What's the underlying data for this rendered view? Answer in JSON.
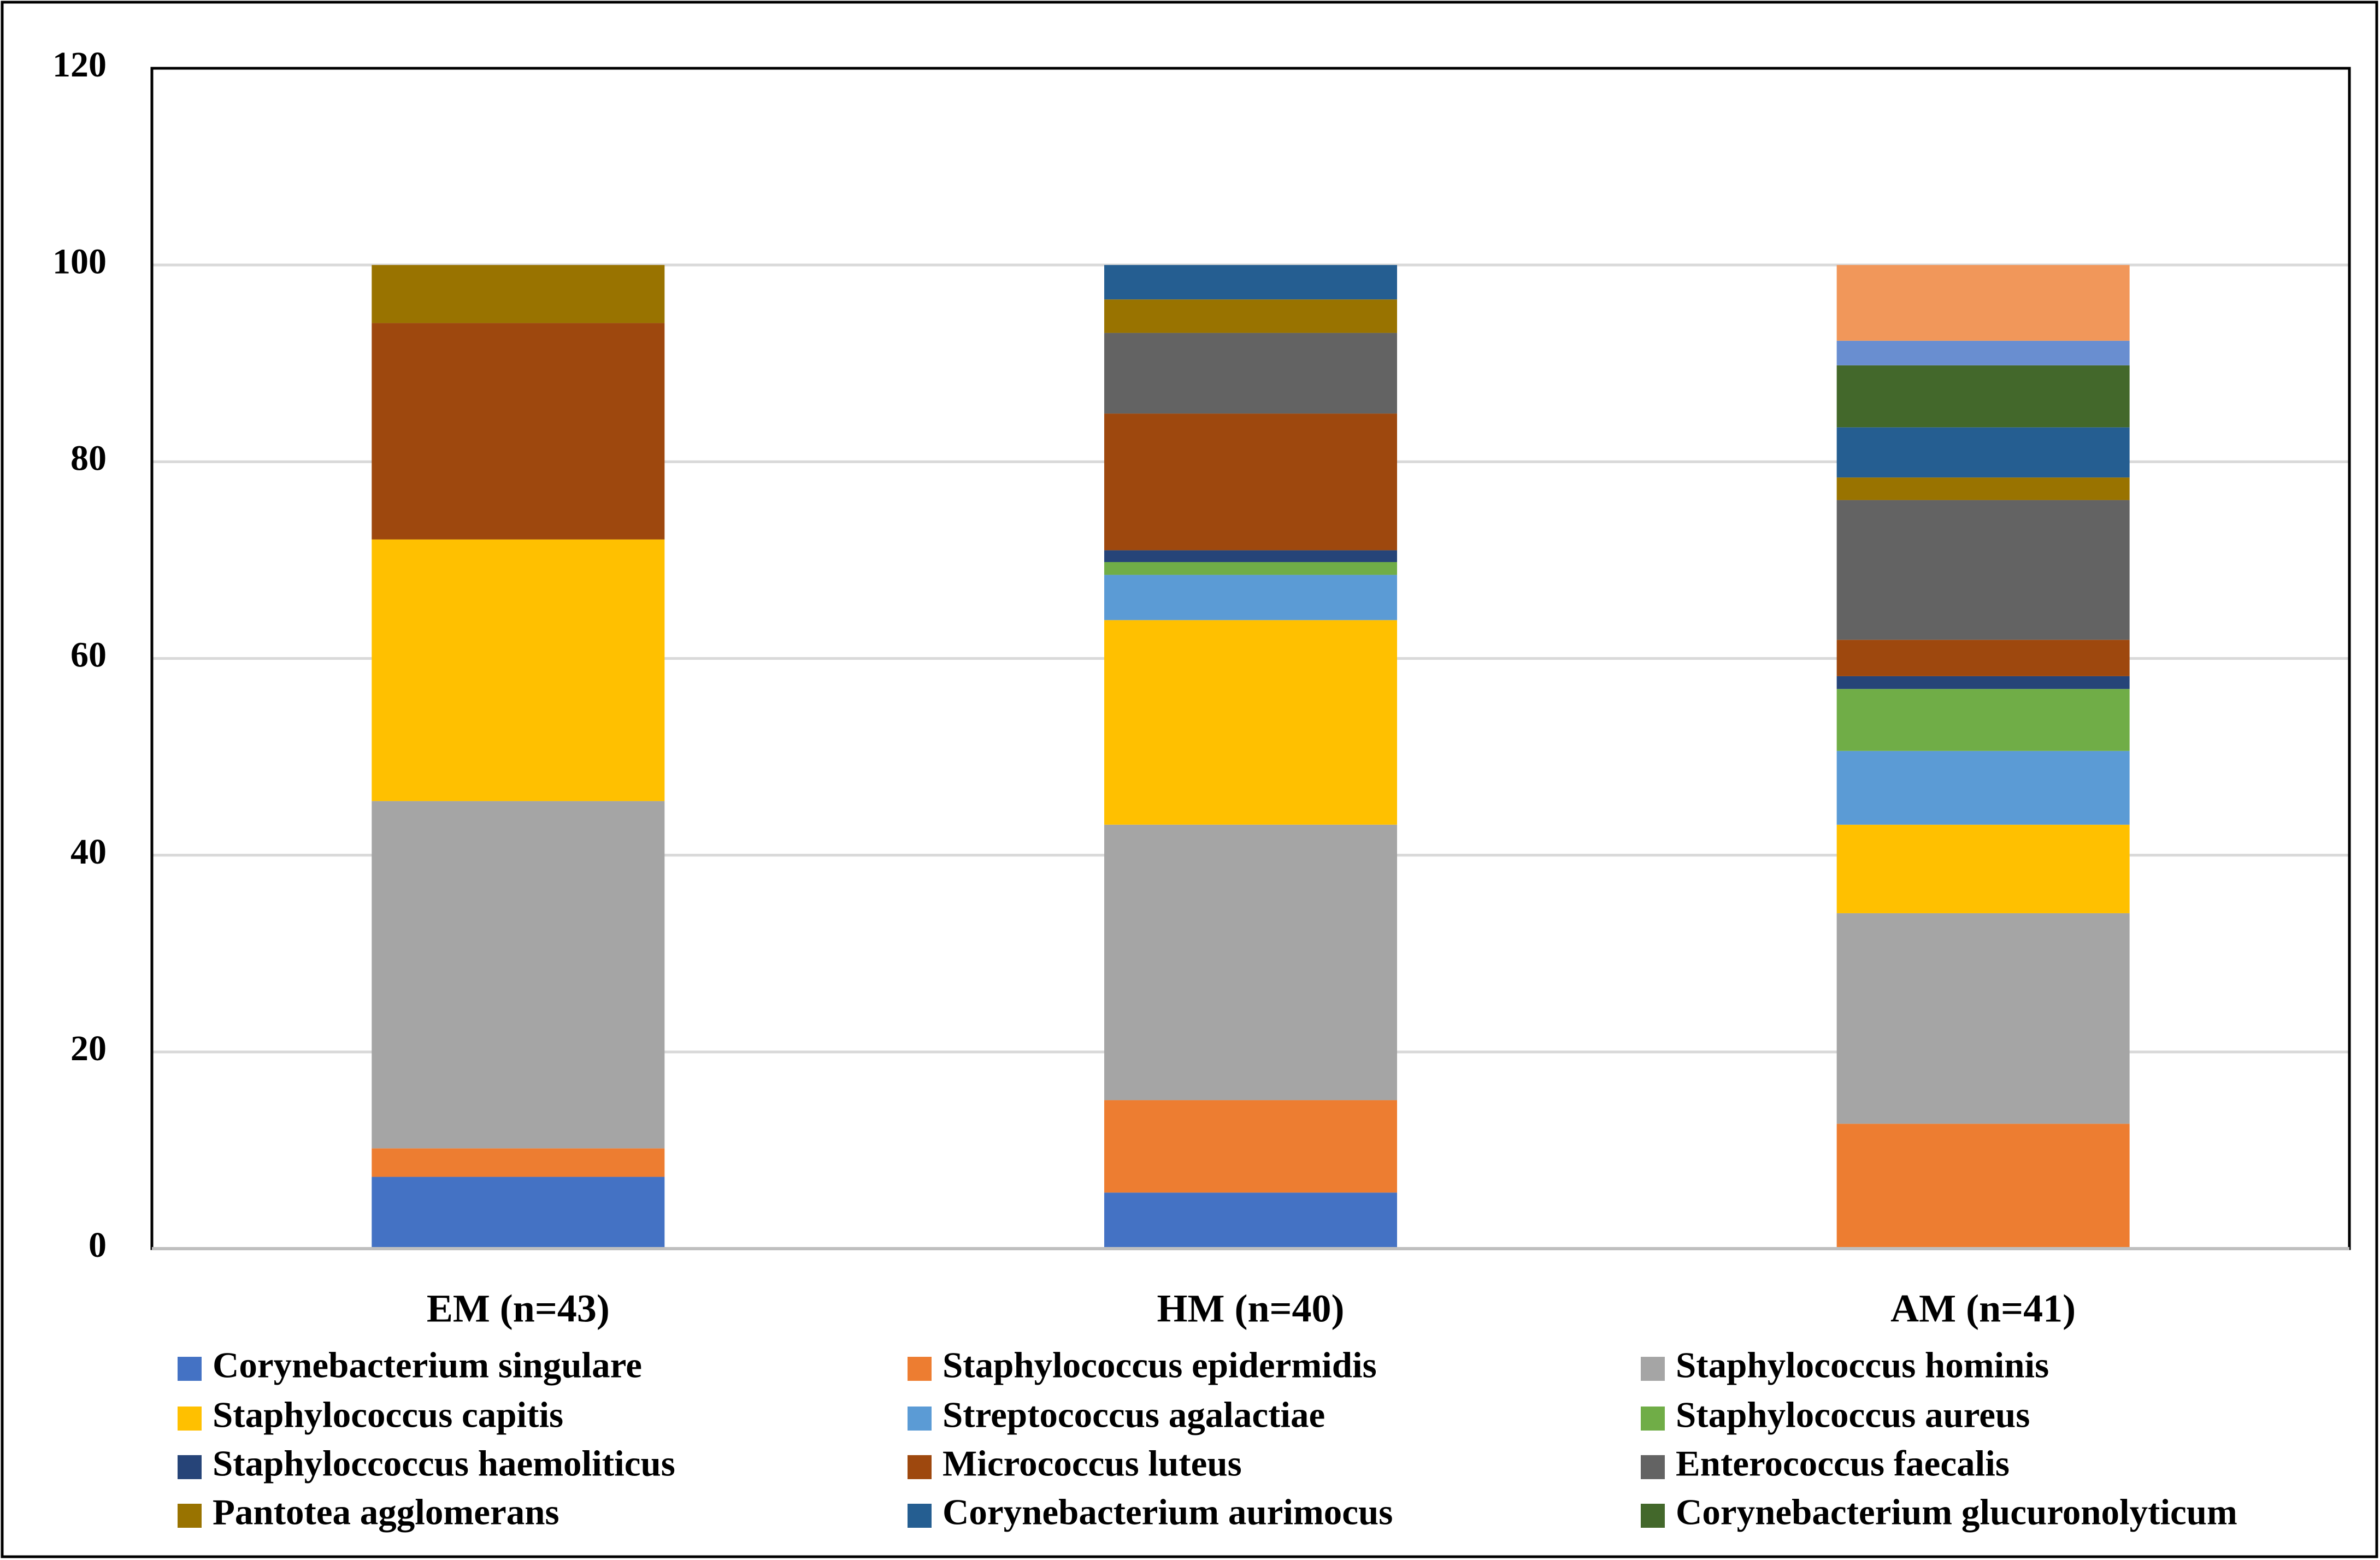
{
  "chart_data": {
    "type": "stacked_bar",
    "categories": [
      "EM (n=43)",
      "HM (n=40)",
      "AM (n=41)"
    ],
    "series": [
      {
        "name": "Corynebacterium singulare",
        "color": "#4472c4",
        "values": [
          7.3,
          5.7,
          null
        ]
      },
      {
        "name": "Staphylococcus epidermidis",
        "color": "#ed7d31",
        "values": [
          2.9,
          9.4,
          12.7
        ]
      },
      {
        "name": "Staphylococcus hominis",
        "color": "#a5a5a5",
        "values": [
          35.3,
          28.0,
          21.4
        ]
      },
      {
        "name": "Staphylococcus capitis",
        "color": "#ffc000",
        "values": [
          26.6,
          20.8,
          9.0
        ]
      },
      {
        "name": "Streptococcus agalactiae",
        "color": "#5b9bd5",
        "values": [
          null,
          4.6,
          7.5
        ]
      },
      {
        "name": "Staphylococcus aureus",
        "color": "#70ad47",
        "values": [
          null,
          1.3,
          6.3
        ]
      },
      {
        "name": "Staphyloccoccus haemoliticus",
        "color": "#264478",
        "values": [
          null,
          1.2,
          1.3
        ]
      },
      {
        "name": "Micrococcus luteus",
        "color": "#9e480e",
        "values": [
          22.0,
          13.9,
          3.7
        ]
      },
      {
        "name": "Enterococcus faecalis",
        "color": "#636363",
        "values": [
          null,
          8.2,
          14.2
        ]
      },
      {
        "name": "Pantotea agglomerans",
        "color": "#997300",
        "values": [
          5.9,
          3.4,
          2.3
        ]
      },
      {
        "name": "Corynebacterium aurimocus",
        "color": "#255e91",
        "values": [
          null,
          3.5,
          5.1
        ]
      },
      {
        "name": "Corynebacterium glucuronolyticum",
        "color": "#43682b",
        "values": [
          null,
          null,
          6.3
        ]
      },
      {
        "color": "#698ed0",
        "values": [
          null,
          null,
          2.5
        ]
      },
      {
        "color": "#f1975a",
        "values": [
          null,
          null,
          7.7
        ]
      }
    ],
    "ylim": [
      0,
      120
    ],
    "yticks": [
      0,
      20,
      40,
      60,
      80,
      100,
      120
    ],
    "grid": true,
    "legend": "bottom"
  }
}
